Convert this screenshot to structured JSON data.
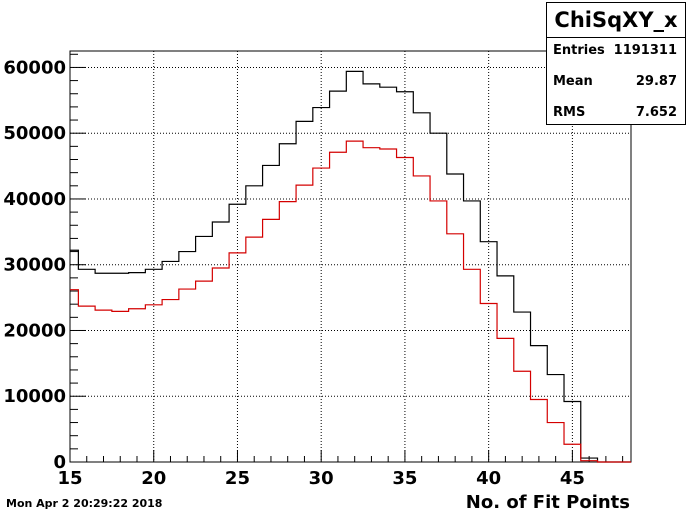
{
  "chart_data": {
    "type": "histogram",
    "xlabel": "No. of Fit Points",
    "xlim": [
      15,
      48.5
    ],
    "ylim": [
      0,
      62500
    ],
    "x_ticks": [
      15,
      20,
      25,
      30,
      35,
      40,
      45
    ],
    "y_ticks": [
      0,
      10000,
      20000,
      30000,
      40000,
      50000,
      60000
    ],
    "grid": true,
    "bin_width": 1,
    "bin_centers": [
      15,
      16,
      17,
      18,
      19,
      20,
      21,
      22,
      23,
      24,
      25,
      26,
      27,
      28,
      29,
      30,
      31,
      32,
      33,
      34,
      35,
      36,
      37,
      38,
      39,
      40,
      41,
      42,
      43,
      44,
      45,
      46,
      47,
      48
    ],
    "series": [
      {
        "color": "#000000",
        "values": [
          32200,
          29300,
          28700,
          28700,
          28800,
          29300,
          30500,
          32000,
          34300,
          36500,
          39200,
          42000,
          45100,
          48400,
          51800,
          53900,
          56400,
          59400,
          57500,
          57000,
          56300,
          53100,
          50000,
          43800,
          39700,
          33500,
          28300,
          22800,
          17700,
          13300,
          9200,
          600,
          0,
          0
        ]
      },
      {
        "color": "#d40000",
        "values": [
          26200,
          23700,
          23100,
          22900,
          23300,
          23900,
          24700,
          26300,
          27500,
          29500,
          31800,
          34200,
          36900,
          39600,
          42100,
          44700,
          47100,
          48800,
          47800,
          47600,
          46300,
          43500,
          39700,
          34700,
          29300,
          24100,
          18800,
          13800,
          9500,
          6000,
          2700,
          200,
          0,
          0
        ]
      }
    ]
  },
  "stats": {
    "title": "ChiSqXY_x",
    "entries_label": "Entries",
    "entries_value": "1191311",
    "mean_label": "Mean",
    "mean_value": "29.87",
    "rms_label": "RMS",
    "rms_value": "7.652"
  },
  "datestamp": "Mon Apr  2 20:29:22 2018"
}
